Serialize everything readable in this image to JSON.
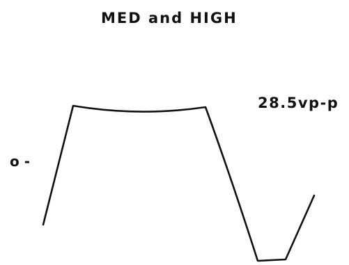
{
  "diagram": {
    "title": "MED and HIGH",
    "amplitude_label": "28.5vp-p",
    "zero_marker": "o -"
  },
  "colors": {
    "trace": "#111111",
    "background": "#ffffff"
  }
}
